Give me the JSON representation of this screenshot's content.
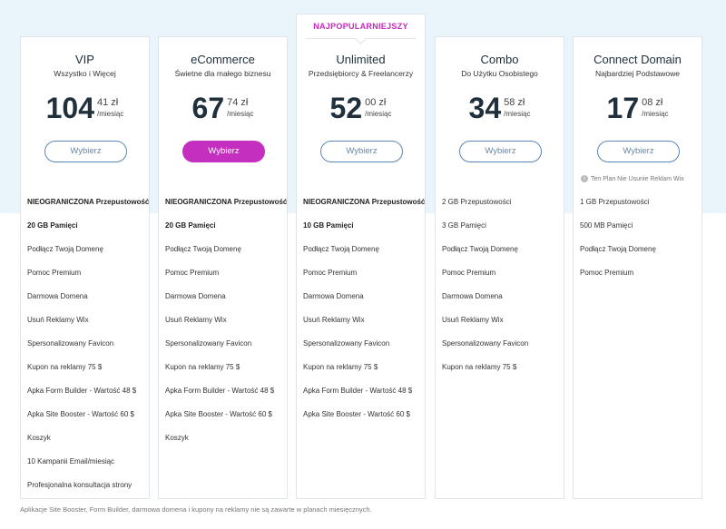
{
  "accent_color": "#c52fc0",
  "badge_label": "NAJPOPULARNIEJSZY",
  "plans": [
    {
      "name": "VIP",
      "subtitle": "Wszystko i Więcej",
      "price_main": "104",
      "price_cents": "41 zł",
      "price_per": "/miesiąc",
      "button_label": "Wybierz",
      "note": "",
      "features": [
        {
          "text": "NIEOGRANICZONA Przepustowość",
          "bold": true
        },
        {
          "text": "20 GB Pamięci",
          "bold": true
        },
        {
          "text": "Podłącz Twoją Domenę",
          "bold": false
        },
        {
          "text": "Pomoc Premium",
          "bold": false
        },
        {
          "text": "Darmowa Domena",
          "bold": false
        },
        {
          "text": "Usuń Reklamy Wix",
          "bold": false
        },
        {
          "text": "Spersonalizowany Favicon",
          "bold": false
        },
        {
          "text": "Kupon na reklamy 75 $",
          "bold": false
        },
        {
          "text": "Apka Form Builder - Wartość 48 $",
          "bold": false
        },
        {
          "text": "Apka Site Booster - Wartość 60 $",
          "bold": false
        },
        {
          "text": "Koszyk",
          "bold": false
        },
        {
          "text": "10 Kampanii Email/miesiąc",
          "bold": false
        },
        {
          "text": "Profesjonalna konsultacja strony",
          "bold": false
        }
      ]
    },
    {
      "name": "eCommerce",
      "subtitle": "Świetne dla małego biznesu",
      "price_main": "67",
      "price_cents": "74 zł",
      "price_per": "/miesiąc",
      "button_label": "Wybierz",
      "note": "",
      "features": [
        {
          "text": "NIEOGRANICZONA Przepustowość",
          "bold": true
        },
        {
          "text": "20 GB Pamięci",
          "bold": true
        },
        {
          "text": "Podłącz Twoją Domenę",
          "bold": false
        },
        {
          "text": "Pomoc Premium",
          "bold": false
        },
        {
          "text": "Darmowa Domena",
          "bold": false
        },
        {
          "text": "Usuń Reklamy Wix",
          "bold": false
        },
        {
          "text": "Spersonalizowany Favicon",
          "bold": false
        },
        {
          "text": "Kupon na reklamy 75 $",
          "bold": false
        },
        {
          "text": "Apka Form Builder - Wartość 48 $",
          "bold": false
        },
        {
          "text": "Apka Site Booster - Wartość 60 $",
          "bold": false
        },
        {
          "text": "Koszyk",
          "bold": false
        }
      ]
    },
    {
      "name": "Unlimited",
      "subtitle": "Przedsiębiorcy & Freelancerzy",
      "price_main": "52",
      "price_cents": "00 zł",
      "price_per": "/miesiąc",
      "button_label": "Wybierz",
      "note": "",
      "features": [
        {
          "text": "NIEOGRANICZONA Przepustowość",
          "bold": true
        },
        {
          "text": "10 GB Pamięci",
          "bold": true
        },
        {
          "text": "Podłącz Twoją Domenę",
          "bold": false
        },
        {
          "text": "Pomoc Premium",
          "bold": false
        },
        {
          "text": "Darmowa Domena",
          "bold": false
        },
        {
          "text": "Usuń Reklamy Wix",
          "bold": false
        },
        {
          "text": "Spersonalizowany Favicon",
          "bold": false
        },
        {
          "text": "Kupon na reklamy 75 $",
          "bold": false
        },
        {
          "text": "Apka Form Builder - Wartość 48 $",
          "bold": false
        },
        {
          "text": "Apka Site Booster - Wartość 60 $",
          "bold": false
        }
      ]
    },
    {
      "name": "Combo",
      "subtitle": "Do Użytku Osobistego",
      "price_main": "34",
      "price_cents": "58 zł",
      "price_per": "/miesiąc",
      "button_label": "Wybierz",
      "note": "",
      "features": [
        {
          "text": "2 GB Przepustowości",
          "bold": false
        },
        {
          "text": "3 GB Pamięci",
          "bold": false
        },
        {
          "text": "Podłącz Twoją Domenę",
          "bold": false
        },
        {
          "text": "Pomoc Premium",
          "bold": false
        },
        {
          "text": "Darmowa Domena",
          "bold": false
        },
        {
          "text": "Usuń Reklamy Wix",
          "bold": false
        },
        {
          "text": "Spersonalizowany Favicon",
          "bold": false
        },
        {
          "text": "Kupon na reklamy 75 $",
          "bold": false
        }
      ]
    },
    {
      "name": "Connect Domain",
      "subtitle": "Najbardziej Podstawowe",
      "price_main": "17",
      "price_cents": "08 zł",
      "price_per": "/miesiąc",
      "button_label": "Wybierz",
      "note": "Ten Plan Nie Usunie Reklam Wix",
      "features": [
        {
          "text": "1 GB Przepustowości",
          "bold": false
        },
        {
          "text": "500 MB Pamięci",
          "bold": false
        },
        {
          "text": "Podłącz Twoją Domenę",
          "bold": false
        },
        {
          "text": "Pomoc Premium",
          "bold": false
        }
      ]
    }
  ],
  "footnote": "Aplikacje Site Booster, Form Builder, darmowa domena i kupony na reklamy nie są zawarte w planach miesięcznych."
}
